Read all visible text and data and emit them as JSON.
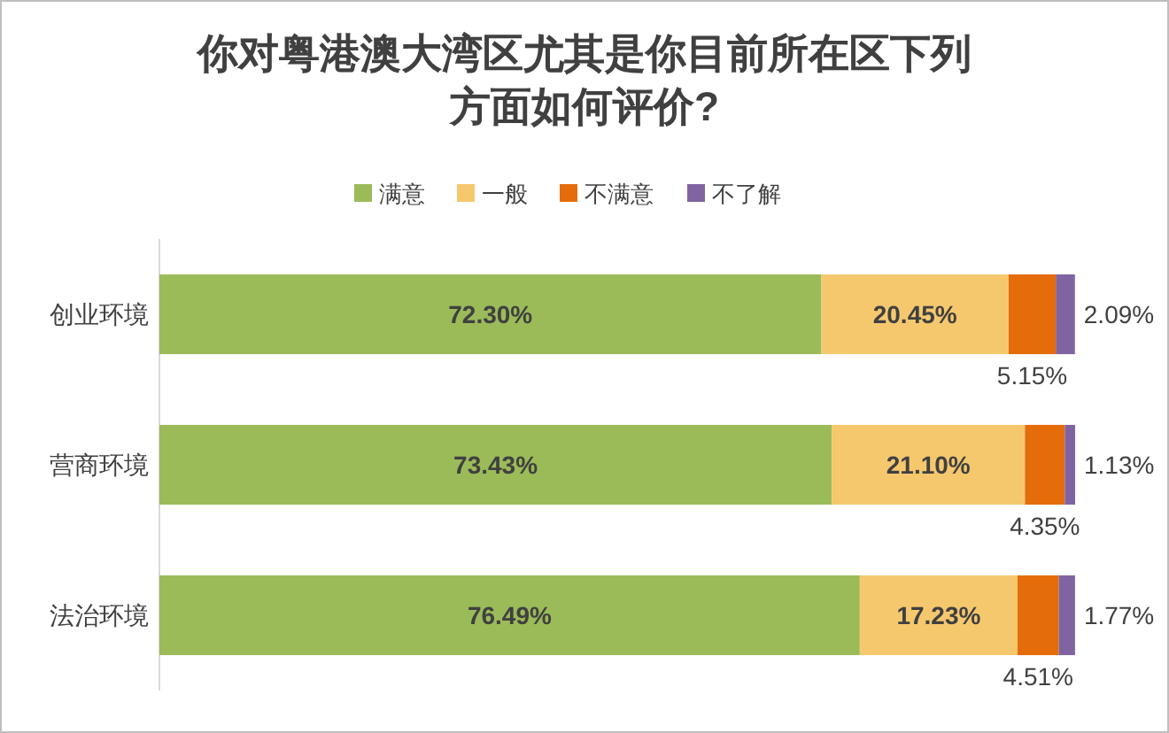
{
  "chart_data": {
    "type": "bar",
    "orientation": "horizontal",
    "stacked": true,
    "title": "你对粤港澳大湾区尤其是你目前所在区下列方面如何评价?",
    "categories": [
      "创业环境",
      "营商环境",
      "法治环境"
    ],
    "series": [
      {
        "name": "满意",
        "color": "#9bbb59",
        "values": [
          72.3,
          73.43,
          76.49
        ],
        "value_labels": [
          "72.30%",
          "73.43%",
          "76.49%"
        ]
      },
      {
        "name": "一般",
        "color": "#f6c86e",
        "values": [
          20.45,
          21.1,
          17.23
        ],
        "value_labels": [
          "20.45%",
          "21.10%",
          "17.23%"
        ]
      },
      {
        "name": "不满意",
        "color": "#e46c0a",
        "values": [
          5.15,
          4.35,
          4.51
        ],
        "value_labels": [
          "5.15%",
          "4.35%",
          "4.51%"
        ]
      },
      {
        "name": "不了解",
        "color": "#8064a2",
        "values": [
          2.09,
          1.13,
          1.77
        ],
        "value_labels": [
          "2.09%",
          "1.13%",
          "1.77%"
        ]
      }
    ],
    "legend": "top"
  }
}
